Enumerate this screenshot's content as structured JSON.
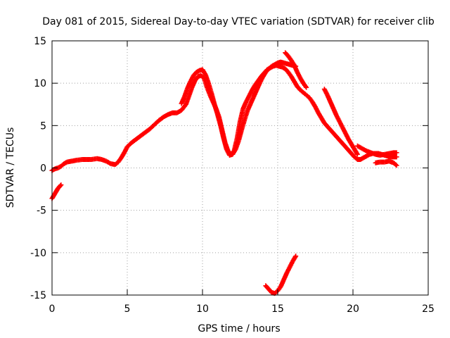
{
  "chart_data": {
    "type": "scatter",
    "title": "Day 081 of 2015, Sidereal Day-to-day VTEC variation (SDTVAR) for receiver clib",
    "xlabel": "GPS time / hours",
    "ylabel": "SDTVAR / TECUs",
    "xlim": [
      0,
      25
    ],
    "ylim": [
      -15,
      15
    ],
    "xticks": [
      0,
      5,
      10,
      15,
      20,
      25
    ],
    "yticks": [
      -15,
      -10,
      -5,
      0,
      5,
      10,
      15
    ],
    "grid": true,
    "marker": "+",
    "series_color": "#ff0000",
    "series": [
      {
        "name": "SDTVAR",
        "x": [
          0.0,
          0.2,
          0.4,
          0.6,
          0.8,
          1.0,
          1.3,
          1.6,
          2.0,
          2.3,
          2.6,
          3.0,
          3.3,
          3.6,
          3.9,
          4.2,
          4.4,
          4.6,
          4.8,
          5.0,
          5.3,
          5.6,
          5.9,
          6.2,
          6.5,
          6.8,
          7.1,
          7.4,
          7.7,
          8.0,
          8.3,
          8.6,
          8.9,
          9.1,
          9.3,
          9.5,
          9.7,
          9.9,
          10.1,
          10.3,
          10.5,
          10.7,
          10.9,
          11.1,
          11.3,
          11.5,
          11.7,
          11.9,
          12.1,
          12.3,
          12.5,
          12.7,
          12.9,
          13.1,
          13.3,
          13.5,
          13.7,
          13.9,
          14.1,
          14.3,
          14.5,
          14.7,
          14.9,
          15.1,
          15.3,
          15.5,
          15.7,
          15.9,
          16.1,
          16.3,
          16.5,
          16.7,
          16.9,
          17.1,
          17.3,
          17.5,
          17.7,
          17.9,
          18.1,
          18.3,
          18.5,
          18.7,
          18.9,
          19.1,
          19.3,
          19.5,
          19.7,
          19.9,
          20.1,
          20.3,
          20.5,
          20.7,
          20.9,
          21.1,
          21.3,
          21.5,
          21.7,
          21.9,
          22.1,
          22.3,
          22.5,
          22.7,
          22.9
        ],
        "y": [
          -0.3,
          -0.1,
          0.0,
          0.2,
          0.5,
          0.7,
          0.8,
          0.9,
          1.0,
          1.0,
          1.0,
          1.1,
          1.0,
          0.8,
          0.5,
          0.4,
          0.7,
          1.2,
          1.8,
          2.5,
          3.0,
          3.4,
          3.8,
          4.2,
          4.6,
          5.1,
          5.6,
          6.0,
          6.3,
          6.5,
          6.5,
          6.8,
          7.5,
          8.5,
          9.5,
          10.3,
          10.8,
          10.9,
          10.6,
          9.5,
          8.6,
          7.8,
          7.0,
          6.0,
          4.5,
          3.0,
          2.0,
          1.6,
          2.0,
          3.5,
          5.5,
          7.0,
          7.8,
          8.5,
          9.2,
          9.8,
          10.3,
          10.8,
          11.2,
          11.6,
          11.8,
          12.0,
          12.1,
          12.0,
          11.9,
          11.7,
          11.3,
          10.8,
          10.2,
          9.6,
          9.2,
          8.9,
          8.6,
          8.3,
          7.8,
          7.2,
          6.5,
          5.9,
          5.3,
          4.9,
          4.5,
          4.1,
          3.7,
          3.3,
          2.9,
          2.5,
          2.1,
          1.7,
          1.3,
          1.0,
          1.0,
          1.2,
          1.4,
          1.6,
          1.7,
          1.7,
          1.7,
          1.6,
          1.5,
          1.4,
          1.3,
          1.3,
          1.3
        ]
      },
      {
        "name": "SDTVAR",
        "x": [
          8.6,
          8.8,
          9.0,
          9.2,
          9.4,
          9.6,
          9.8,
          10.0,
          10.2,
          10.4,
          10.6,
          10.8,
          11.0,
          11.2,
          11.4,
          11.6,
          11.8,
          12.0,
          12.2,
          12.4,
          12.6,
          12.8,
          13.0,
          13.2,
          13.4,
          13.6,
          13.8,
          14.0,
          14.2,
          14.4,
          14.6,
          14.8,
          15.0,
          15.2,
          15.4,
          15.6,
          15.8,
          16.0,
          16.2
        ],
        "y": [
          7.6,
          8.4,
          9.4,
          10.2,
          10.9,
          11.3,
          11.5,
          11.6,
          11.0,
          10.0,
          8.8,
          7.5,
          6.3,
          5.0,
          3.5,
          2.2,
          1.5,
          1.6,
          2.2,
          3.2,
          4.5,
          5.7,
          6.8,
          7.6,
          8.4,
          9.2,
          10.0,
          10.7,
          11.3,
          11.7,
          12.0,
          12.2,
          12.4,
          12.5,
          12.4,
          12.3,
          12.2,
          12.1,
          12.0
        ]
      },
      {
        "name": "SDTVAR",
        "x": [
          15.5,
          15.7,
          15.9,
          16.1,
          16.3,
          16.5,
          16.7,
          16.9
        ],
        "y": [
          13.6,
          13.2,
          12.7,
          12.1,
          11.3,
          10.6,
          10.0,
          9.5
        ]
      },
      {
        "name": "SDTVAR",
        "x": [
          18.1,
          18.3,
          18.5,
          18.7,
          18.9,
          19.1,
          19.3,
          19.5,
          19.7,
          19.9,
          20.1,
          20.3
        ],
        "y": [
          9.3,
          8.6,
          7.8,
          7.0,
          6.2,
          5.5,
          4.8,
          4.1,
          3.4,
          2.8,
          2.2,
          1.6
        ]
      },
      {
        "name": "SDTVAR",
        "x": [
          20.3,
          20.6,
          20.9,
          21.2,
          21.5,
          21.8,
          22.1,
          22.4,
          22.7,
          22.9
        ],
        "y": [
          2.6,
          2.3,
          2.0,
          1.8,
          1.6,
          1.5,
          1.6,
          1.7,
          1.8,
          1.8
        ]
      },
      {
        "name": "SDTVAR",
        "x": [
          21.5,
          21.8,
          22.1,
          22.4,
          22.7,
          22.9
        ],
        "y": [
          0.6,
          0.7,
          0.7,
          0.8,
          0.6,
          0.3
        ]
      },
      {
        "name": "SDTVAR",
        "x": [
          0.0,
          0.1,
          0.2,
          0.3,
          0.4,
          0.5,
          0.6
        ],
        "y": [
          -3.6,
          -3.3,
          -3.0,
          -2.7,
          -2.4,
          -2.2,
          -2.0
        ]
      },
      {
        "name": "SDTVAR",
        "x": [
          14.2,
          14.4,
          14.6,
          14.8,
          15.0,
          15.2,
          15.4,
          15.6,
          15.8,
          16.0,
          16.2
        ],
        "y": [
          -13.9,
          -14.3,
          -14.7,
          -14.8,
          -14.5,
          -14.0,
          -13.2,
          -12.4,
          -11.7,
          -11.0,
          -10.4
        ]
      }
    ]
  }
}
